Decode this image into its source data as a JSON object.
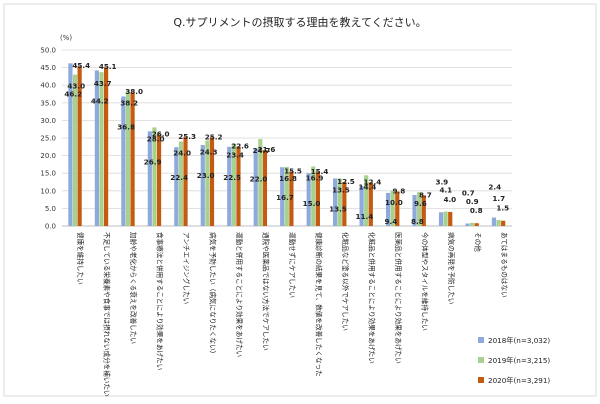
{
  "chart_data": {
    "type": "bar",
    "title": "Q.サプリメントの摂取する理由を教えてください。",
    "ylabel": "(%)",
    "ylim": [
      0,
      50
    ],
    "yticks": [
      "0.0",
      "5.0",
      "10.0",
      "15.0",
      "20.0",
      "25.0",
      "30.0",
      "35.0",
      "40.0",
      "45.0",
      "50.0"
    ],
    "grid": true,
    "legend_position": "bottom-right",
    "categories": [
      "健康を維持したい",
      "不足している栄養素や食事では摂れない成分を補いたい",
      "加齢や老化からくる衰えを改善したい",
      "食事療法と併用することにより効果をあげたい",
      "アンチエイジングしたい",
      "病気を予防したい（病気になりたくない）",
      "運動と併用することにより効果をあげたい",
      "通院や医薬品ではない方法でケアしたい",
      "運動せずにケアしたい",
      "健康診断の結果を見て、数値を改善したくなった",
      "化粧品など塗る以外でケアしたい",
      "化粧品と併用することにより効果をあげたい",
      "医薬品と併用することにより効果をあげたい",
      "今の体型やスタイルを維持したい",
      "病気の再発を予防したい",
      "その他",
      "あてはまるものはない"
    ],
    "series": [
      {
        "name": "2018年(n=3,032)",
        "color": "#8eaadc",
        "values": [
          46.2,
          44.2,
          36.8,
          26.9,
          22.4,
          23.0,
          22.5,
          22.0,
          16.7,
          15.0,
          13.5,
          11.4,
          9.4,
          8.8,
          3.9,
          0.7,
          2.4
        ]
      },
      {
        "name": "2019年(n=3,215)",
        "color": "#a9d18e",
        "values": [
          43.0,
          43.7,
          38.2,
          28.0,
          24.0,
          24.3,
          23.4,
          24.7,
          16.8,
          16.9,
          13.5,
          14.4,
          10.0,
          9.6,
          4.1,
          0.9,
          1.7
        ]
      },
      {
        "name": "2020年(n=3,291)",
        "color": "#c55a11",
        "values": [
          45.4,
          45.1,
          38.0,
          26.0,
          25.3,
          25.2,
          22.6,
          21.6,
          15.5,
          15.4,
          12.5,
          12.4,
          9.8,
          8.7,
          4.0,
          0.8,
          1.5
        ]
      }
    ]
  }
}
